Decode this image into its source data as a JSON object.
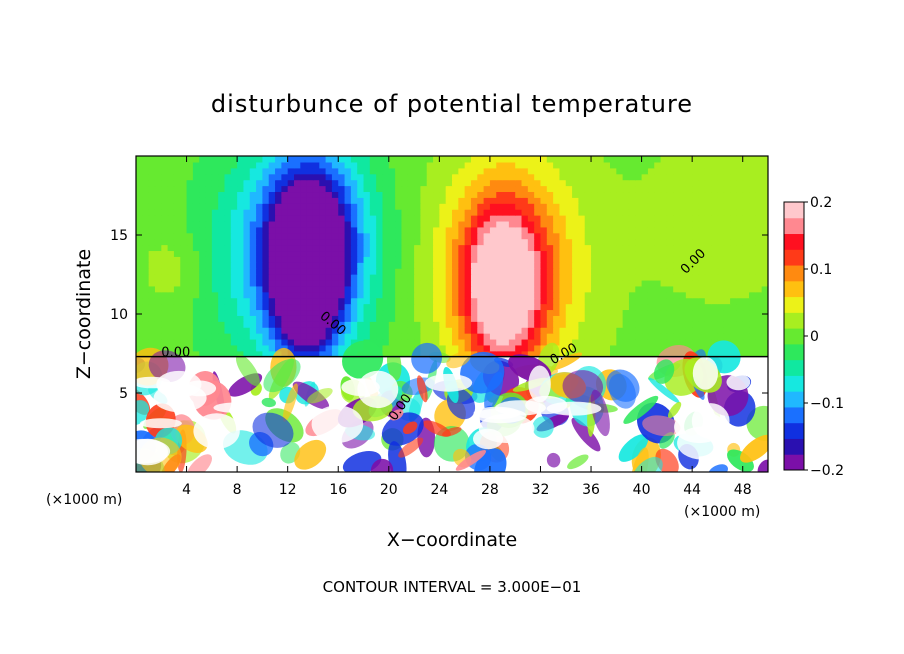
{
  "chart_data": {
    "type": "heatmap",
    "title": "disturbunce of potential temperature",
    "xlabel": "X−coordinate",
    "ylabel": "Z−coordinate",
    "x_unit_left": "(×1000 m)",
    "x_unit_right": "(×1000 m)",
    "footer": "CONTOUR INTERVAL = 3.000E−01",
    "xlim": [
      0,
      50
    ],
    "ylim": [
      0,
      20
    ],
    "xticks": [
      4,
      8,
      12,
      16,
      20,
      24,
      28,
      32,
      36,
      40,
      44,
      48
    ],
    "yticks": [
      5,
      10,
      15
    ],
    "colorbar": {
      "range": [
        -0.2,
        0.2
      ],
      "tick_values": [
        0.2,
        0.1,
        0,
        -0.1,
        -0.2
      ],
      "tick_labels": [
        "0.2",
        "0.1",
        "0",
        "−0.1",
        "−0.2"
      ],
      "colors": [
        "#7b0fa8",
        "#2a10b0",
        "#1030e0",
        "#1a70ff",
        "#20b8ff",
        "#16e8e0",
        "#10e8a0",
        "#2ee85c",
        "#66ea30",
        "#a8ee20",
        "#ecf218",
        "#ffc010",
        "#ff8a10",
        "#ff3a18",
        "#ff1020",
        "#ff8890",
        "#ffc8cc"
      ]
    },
    "contour_labels": [
      {
        "text": "0.00",
        "x": 14.5,
        "y": 9.8,
        "angle": 40
      },
      {
        "text": "0.00",
        "x": 43.5,
        "y": 12.5,
        "angle": -45
      },
      {
        "text": "0.00",
        "x": 2.0,
        "y": 7.3,
        "angle": 0
      },
      {
        "text": "0.00",
        "x": 33.0,
        "y": 6.8,
        "angle": -30
      },
      {
        "text": "0.00",
        "x": 20.5,
        "y": 3.2,
        "angle": -55
      }
    ],
    "blobs": [
      {
        "x": 13.5,
        "y": 12.0,
        "rx": 2.6,
        "ry": 5.0,
        "v": -0.2
      },
      {
        "x": 14.0,
        "y": 15.0,
        "rx": 4.0,
        "ry": 5.5,
        "v": -0.14
      },
      {
        "x": 12.0,
        "y": 13.5,
        "rx": 7.0,
        "ry": 7.5,
        "v": -0.09
      },
      {
        "x": 29.0,
        "y": 11.5,
        "rx": 3.0,
        "ry": 5.0,
        "v": 0.17
      },
      {
        "x": 29.5,
        "y": 13.0,
        "rx": 5.5,
        "ry": 6.5,
        "v": 0.11
      },
      {
        "x": 3.0,
        "y": 12.8,
        "rx": 2.5,
        "ry": 2.5,
        "v": 0.03
      },
      {
        "x": 46.0,
        "y": 16.0,
        "rx": 6.0,
        "ry": 5.0,
        "v": 0.02
      }
    ]
  }
}
